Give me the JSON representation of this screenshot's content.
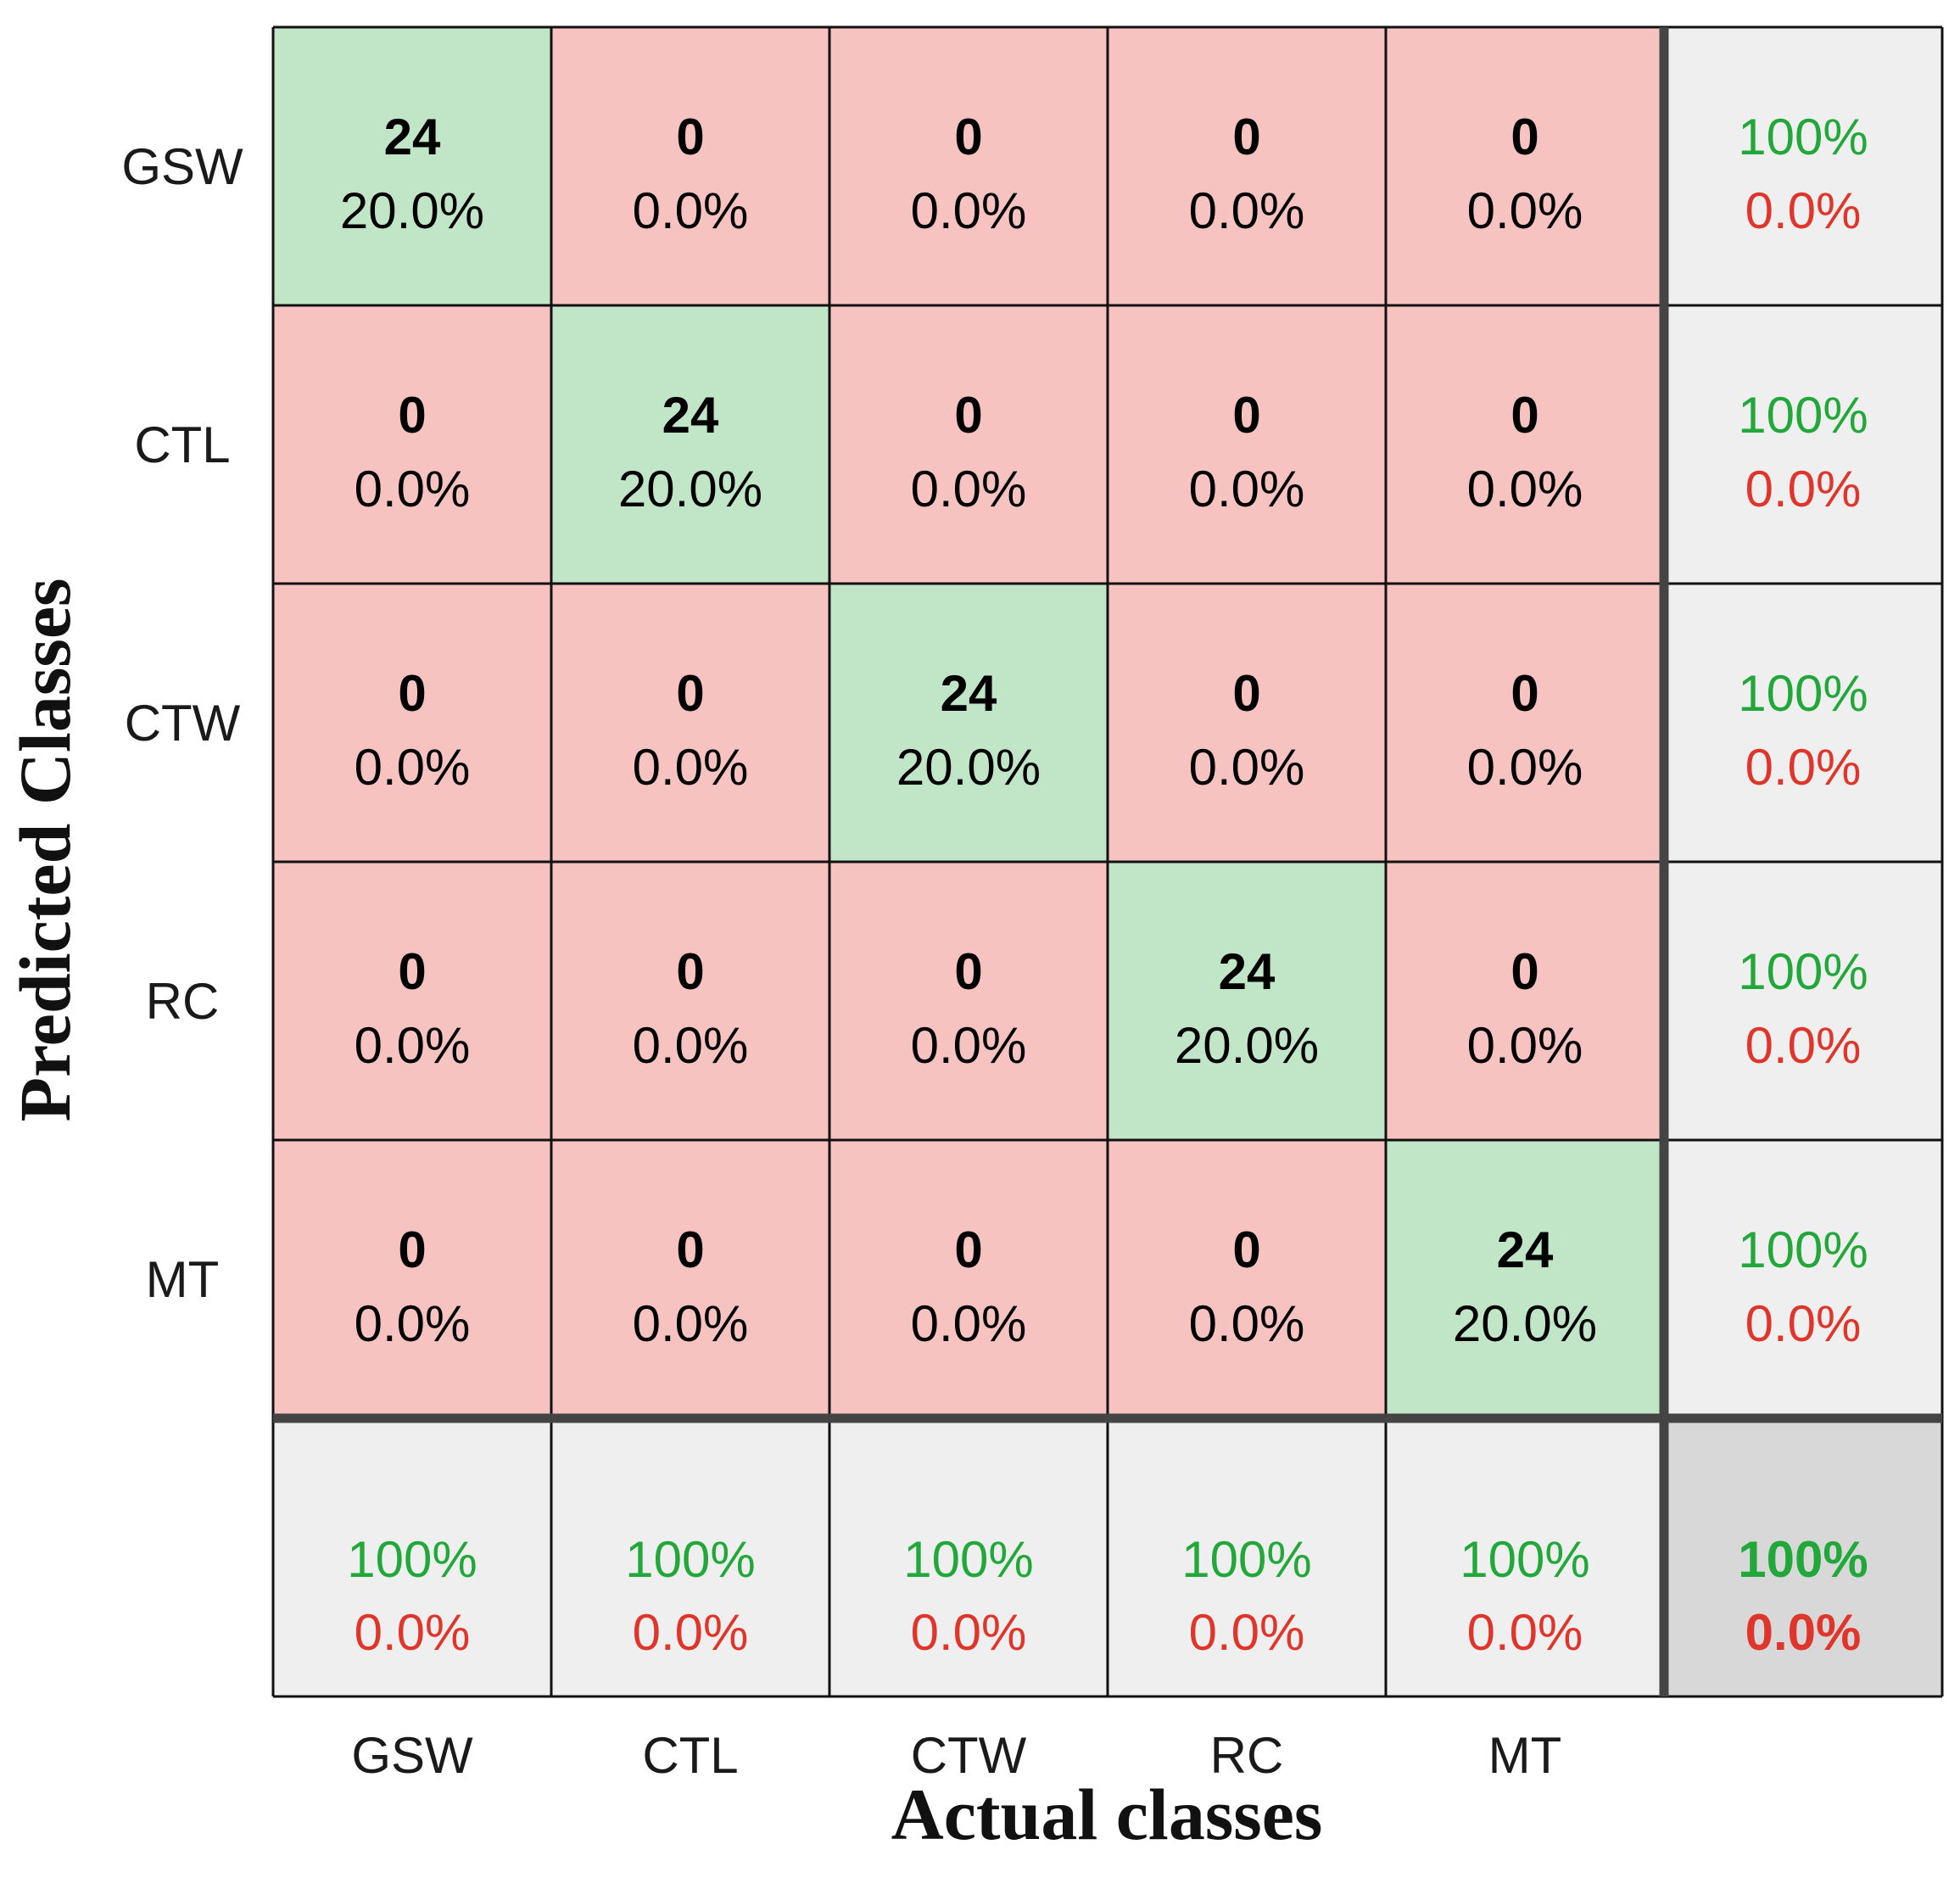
{
  "chart_data": {
    "type": "heatmap",
    "subtype": "confusion_matrix",
    "xlabel": "Actual classes",
    "ylabel": "Predicted Classes",
    "classes": [
      "GSW",
      "CTL",
      "CTW",
      "RC",
      "MT"
    ],
    "matrix": [
      [
        24,
        0,
        0,
        0,
        0
      ],
      [
        0,
        24,
        0,
        0,
        0
      ],
      [
        0,
        0,
        24,
        0,
        0
      ],
      [
        0,
        0,
        0,
        24,
        0
      ],
      [
        0,
        0,
        0,
        0,
        24
      ]
    ],
    "matrix_percent": [
      [
        "20.0%",
        "0.0%",
        "0.0%",
        "0.0%",
        "0.0%"
      ],
      [
        "0.0%",
        "20.0%",
        "0.0%",
        "0.0%",
        "0.0%"
      ],
      [
        "0.0%",
        "0.0%",
        "20.0%",
        "0.0%",
        "0.0%"
      ],
      [
        "0.0%",
        "0.0%",
        "0.0%",
        "20.0%",
        "0.0%"
      ],
      [
        "0.0%",
        "0.0%",
        "0.0%",
        "0.0%",
        "20.0%"
      ]
    ],
    "row_summary": [
      {
        "correct": "100%",
        "error": "0.0%"
      },
      {
        "correct": "100%",
        "error": "0.0%"
      },
      {
        "correct": "100%",
        "error": "0.0%"
      },
      {
        "correct": "100%",
        "error": "0.0%"
      },
      {
        "correct": "100%",
        "error": "0.0%"
      }
    ],
    "col_summary": [
      {
        "correct": "100%",
        "error": "0.0%"
      },
      {
        "correct": "100%",
        "error": "0.0%"
      },
      {
        "correct": "100%",
        "error": "0.0%"
      },
      {
        "correct": "100%",
        "error": "0.0%"
      },
      {
        "correct": "100%",
        "error": "0.0%"
      }
    ],
    "overall": {
      "correct": "100%",
      "error": "0.0%"
    }
  },
  "colors": {
    "correct_cell": "#c0e6c7",
    "incorrect_cell": "#f7c3c1",
    "summary_cell": "#efefef",
    "overall_cell": "#d8d8d8",
    "good_text": "#22a83a",
    "bad_text": "#e0352b",
    "grid": "#111111",
    "separator": "#444444"
  }
}
